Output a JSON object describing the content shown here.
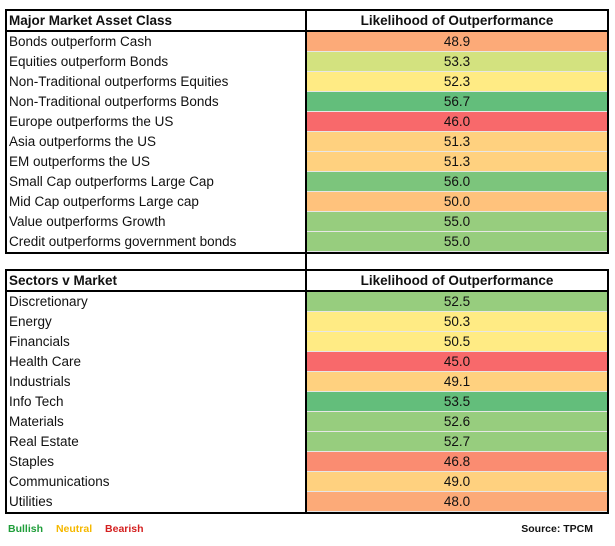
{
  "colors": {
    "dark_green": "#63be7b",
    "green": "#97cd7e",
    "light_green": "#d3e27f",
    "yellow": "#ffeb84",
    "light_orange": "#ffd17f",
    "orange": "#fcaa78",
    "dark_orange": "#fa9573",
    "red": "#f8696b"
  },
  "table1": {
    "header_left": "Major Market Asset Class",
    "header_right": "Likelihood of Outperformance",
    "rows": [
      {
        "label": "Bonds outperform Cash",
        "value": "48.9",
        "color": "#fcaa78"
      },
      {
        "label": "Equities outperform Bonds",
        "value": "53.3",
        "color": "#d3e27f"
      },
      {
        "label": "Non-Traditional outperforms Equities",
        "value": "52.3",
        "color": "#ffeb84"
      },
      {
        "label": "Non-Traditional outperforms Bonds",
        "value": "56.7",
        "color": "#63be7b"
      },
      {
        "label": "Europe outperforms the US",
        "value": "46.0",
        "color": "#f8696b"
      },
      {
        "label": "Asia outperforms the US",
        "value": "51.3",
        "color": "#ffd17f"
      },
      {
        "label": "EM outperforms the US",
        "value": "51.3",
        "color": "#ffd17f"
      },
      {
        "label": "Small Cap outperforms Large Cap",
        "value": "56.0",
        "color": "#7cc57c"
      },
      {
        "label": "Mid Cap outperforms Large cap",
        "value": "50.0",
        "color": "#ffc27c"
      },
      {
        "label": "Value outperforms Growth",
        "value": "55.0",
        "color": "#97cd7e"
      },
      {
        "label": "Credit outperforms government bonds",
        "value": "55.0",
        "color": "#97cd7e"
      }
    ]
  },
  "table2": {
    "header_left": "Sectors v Market",
    "header_right": "Likelihood of Outperformance",
    "rows": [
      {
        "label": "Discretionary",
        "value": "52.5",
        "color": "#97cd7e"
      },
      {
        "label": "Energy",
        "value": "50.3",
        "color": "#ffeb84"
      },
      {
        "label": "Financials",
        "value": "50.5",
        "color": "#ffeb84"
      },
      {
        "label": "Health Care",
        "value": "45.0",
        "color": "#f8696b"
      },
      {
        "label": "Industrials",
        "value": "49.1",
        "color": "#ffd17f"
      },
      {
        "label": "Info Tech",
        "value": "53.5",
        "color": "#63be7b"
      },
      {
        "label": "Materials",
        "value": "52.6",
        "color": "#97cd7e"
      },
      {
        "label": "Real Estate",
        "value": "52.7",
        "color": "#97cd7e"
      },
      {
        "label": "Staples",
        "value": "46.8",
        "color": "#fa8c71"
      },
      {
        "label": "Communications",
        "value": "49.0",
        "color": "#ffd17f"
      },
      {
        "label": "Utilities",
        "value": "48.0",
        "color": "#fcaa78"
      }
    ]
  },
  "legend": {
    "bullish": "Bullish",
    "bullish_color": "#1f9e3a",
    "neutral": "Neutral",
    "neutral_color": "#f5b800",
    "bearish": "Bearish",
    "bearish_color": "#d42020"
  },
  "source": "Source: TPCM"
}
